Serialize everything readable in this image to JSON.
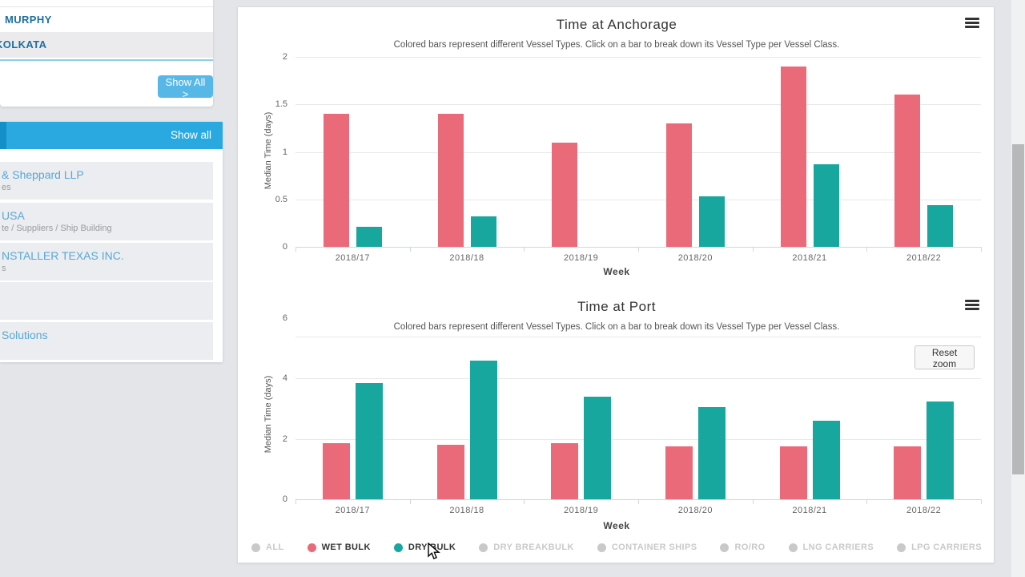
{
  "sidebar": {
    "ports": [
      {
        "label": "MURPHY"
      },
      {
        "label": "KOLKATA"
      }
    ],
    "show_all_button": "Show All >",
    "list_header": "Show all",
    "companies": [
      {
        "title": "& Sheppard LLP",
        "subtitle": "es"
      },
      {
        "title": "USA",
        "subtitle": "te / Suppliers / Ship Building"
      },
      {
        "title": "NSTALLER TEXAS INC.",
        "subtitle": "s"
      },
      {
        "title": "",
        "subtitle": ""
      },
      {
        "title": "Solutions",
        "subtitle": ""
      }
    ]
  },
  "ui": {
    "reset_zoom": "Reset zoom"
  },
  "chart_data": [
    {
      "type": "bar",
      "title": "Time at Anchorage",
      "subtitle": "Colored bars represent different Vessel Types. Click on a bar to break down its Vessel Type per Vessel Class.",
      "xlabel": "Week",
      "ylabel": "Median Time (days)",
      "categories": [
        "2018/17",
        "2018/18",
        "2018/19",
        "2018/20",
        "2018/21",
        "2018/22"
      ],
      "series": [
        {
          "name": "WET BULK",
          "color": "#ea6a7a",
          "values": [
            1.4,
            1.4,
            1.1,
            1.3,
            1.9,
            1.6
          ]
        },
        {
          "name": "DRY BULK",
          "color": "#17a79f",
          "values": [
            0.21,
            0.32,
            null,
            0.53,
            0.87,
            0.44
          ]
        }
      ],
      "ylim": [
        0,
        2
      ],
      "yticks": [
        0,
        0.5,
        1,
        1.5,
        2
      ],
      "gridlines": [
        0.5,
        1,
        1.5,
        2
      ],
      "grid": "on",
      "legend_position": "shared-bottom"
    },
    {
      "type": "bar",
      "title": "Time at Port",
      "subtitle": "Colored bars represent different Vessel Types. Click on a bar to break down its Vessel Type per Vessel Class.",
      "xlabel": "Week",
      "ylabel": "Median Time (days)",
      "categories": [
        "2018/17",
        "2018/18",
        "2018/19",
        "2018/20",
        "2018/21",
        "2018/22"
      ],
      "series": [
        {
          "name": "WET BULK",
          "color": "#ea6a7a",
          "values": [
            1.85,
            1.8,
            1.85,
            1.75,
            1.75,
            1.75
          ]
        },
        {
          "name": "DRY BULK",
          "color": "#17a79f",
          "values": [
            3.85,
            4.6,
            3.4,
            3.05,
            2.6,
            3.25
          ]
        }
      ],
      "ylim": [
        0,
        6
      ],
      "yticks": [
        0,
        2,
        4,
        6
      ],
      "gridlines": [
        2,
        4,
        5.4
      ],
      "grid": "on",
      "zoomed": true,
      "legend_position": "shared-bottom"
    }
  ],
  "legend": {
    "inactive_color": "#c9c9c9",
    "active_text_color": "#333333",
    "items": [
      {
        "label": "ALL",
        "active": false
      },
      {
        "label": "WET BULK",
        "active": true,
        "color": "#ea6a7a"
      },
      {
        "label": "DRY BULK",
        "active": true,
        "color": "#17a79f"
      },
      {
        "label": "DRY BREAKBULK",
        "active": false
      },
      {
        "label": "CONTAINER SHIPS",
        "active": false
      },
      {
        "label": "RO/RO",
        "active": false
      },
      {
        "label": "LNG CARRIERS",
        "active": false
      },
      {
        "label": "LPG CARRIERS",
        "active": false
      }
    ]
  }
}
